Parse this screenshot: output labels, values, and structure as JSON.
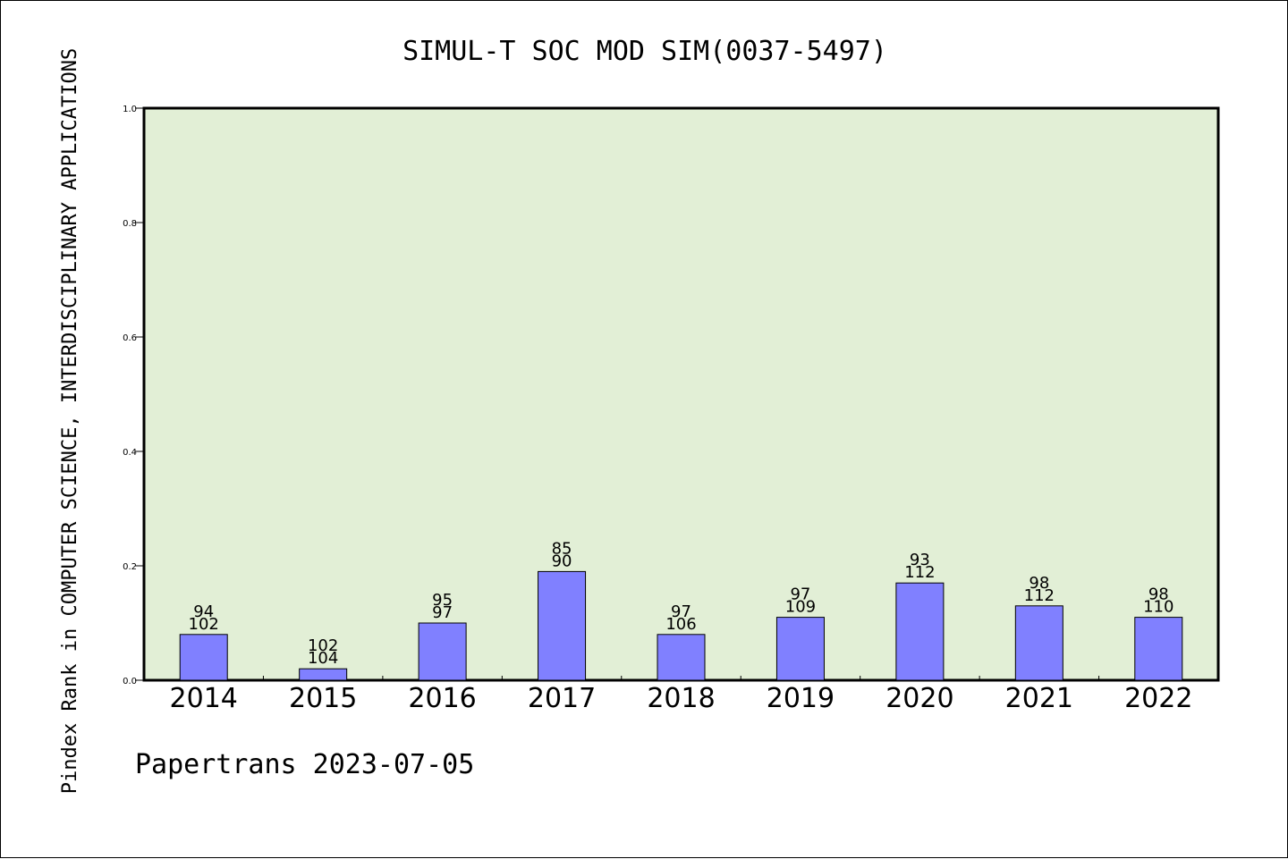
{
  "chart_data": {
    "type": "bar",
    "title": "SIMUL-T SOC MOD SIM(0037-5497)",
    "ylabel": "Pindex Rank in COMPUTER SCIENCE, INTERDISCIPLINARY APPLICATIONS",
    "xlabel": "",
    "categories": [
      "2014",
      "2015",
      "2016",
      "2017",
      "2018",
      "2019",
      "2020",
      "2021",
      "2022"
    ],
    "values": [
      0.08,
      0.02,
      0.1,
      0.19,
      0.08,
      0.11,
      0.17,
      0.13,
      0.11
    ],
    "labels_upper": [
      "94",
      "102",
      "95",
      "85",
      "97",
      "97",
      "93",
      "98",
      "98"
    ],
    "labels_lower": [
      "102",
      "104",
      "97",
      "90",
      "106",
      "109",
      "112",
      "112",
      "110"
    ],
    "yticks": [
      "0.0",
      "0.2",
      "0.4",
      "0.6",
      "0.8",
      "1.0"
    ],
    "ylim": [
      0,
      1.0
    ],
    "grid": false,
    "footer": "Papertrans 2023-07-05",
    "colors": {
      "plot_background": "#e2efd6",
      "bar_fill": "#8080ff",
      "bar_stroke": "#000000"
    }
  }
}
